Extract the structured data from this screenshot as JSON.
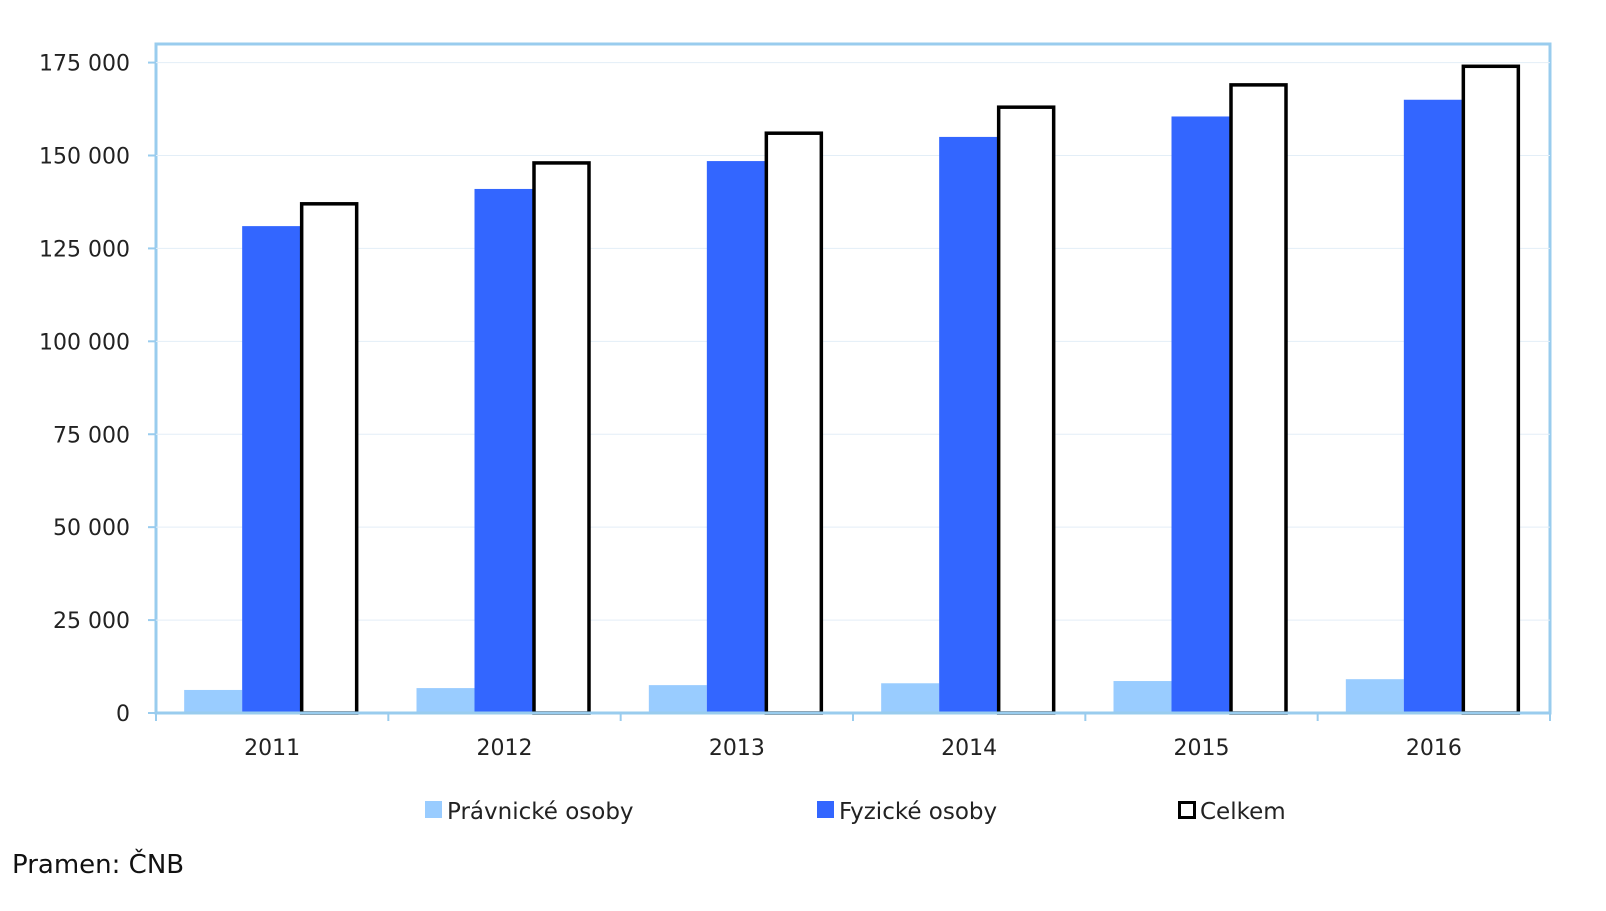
{
  "chart_data": {
    "type": "bar",
    "categories": [
      "2011",
      "2012",
      "2013",
      "2014",
      "2015",
      "2016"
    ],
    "series": [
      {
        "name": "Právnické osoby",
        "values": [
          6200,
          6700,
          7500,
          8000,
          8600,
          9100
        ],
        "color": "#99ccff",
        "style": "filled"
      },
      {
        "name": "Fyzické osoby",
        "values": [
          131000,
          141000,
          148500,
          155000,
          160500,
          165000
        ],
        "color": "#3366ff",
        "style": "filled"
      },
      {
        "name": "Celkem",
        "values": [
          137000,
          148000,
          156000,
          163000,
          169000,
          174000
        ],
        "color": "#000000",
        "style": "outline"
      }
    ],
    "yticks": [
      0,
      25000,
      50000,
      75000,
      100000,
      125000,
      150000,
      175000
    ],
    "ytick_labels": [
      "0",
      "25 000",
      "50 000",
      "75 000",
      "100 000",
      "125 000",
      "150 000",
      "175 000"
    ],
    "ylim": [
      0,
      180000
    ],
    "grid": true,
    "legend_position": "bottom",
    "frame_color": "#99ccee"
  },
  "source": "Pramen: ČNB"
}
